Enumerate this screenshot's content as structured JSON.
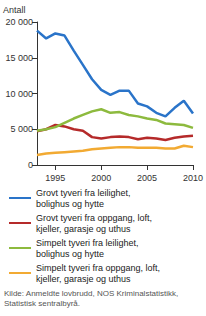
{
  "chart_data": {
    "type": "line",
    "y_label": "Antall",
    "x": [
      1993,
      1994,
      1995,
      1996,
      1997,
      1998,
      1999,
      2000,
      2001,
      2002,
      2003,
      2004,
      2005,
      2006,
      2007,
      2008,
      2009,
      2010
    ],
    "xlim": [
      1993,
      2010
    ],
    "xticks": [
      1995,
      2000,
      2005,
      2010
    ],
    "ylim": [
      0,
      20000
    ],
    "yticks": [
      0,
      {
        "value": 5000,
        "label": "5 000"
      },
      {
        "value": 10000,
        "label": "10 000"
      },
      {
        "value": 15000,
        "label": "15 000"
      },
      {
        "value": 20000,
        "label": "20 000"
      }
    ],
    "grid": false,
    "legend": "bottom",
    "series": [
      {
        "name": "Grovt tyveri fra leilighet, bolighus og hytte",
        "color": "#2a74c9",
        "line_style": "solid",
        "values": [
          18800,
          17700,
          18400,
          18100,
          16000,
          14000,
          12000,
          10500,
          9800,
          10400,
          10400,
          8600,
          8200,
          7300,
          6800,
          8000,
          9000,
          7200
        ]
      },
      {
        "name": "Grovt tyveri fra oppgang, loft, kjeller, garasje og uthus",
        "color": "#b52a2a",
        "line_style": "solid",
        "values": [
          4700,
          5000,
          5600,
          5400,
          5000,
          4800,
          3900,
          3700,
          3900,
          4000,
          3900,
          3600,
          3800,
          3700,
          3500,
          3800,
          4000,
          4100
        ]
      },
      {
        "name": "Simpelt tyveri fra leilighet, bolighus og hytte",
        "color": "#8dba3e",
        "line_style": "solid",
        "values": [
          4800,
          5000,
          5300,
          5900,
          6500,
          7000,
          7500,
          7800,
          7300,
          7400,
          7000,
          6800,
          6500,
          6300,
          5800,
          5700,
          5600,
          5200
        ]
      },
      {
        "name": "Simpelt tyveri fra oppgang, loft, kjeller, garasje og uthus",
        "color": "#f2aa32",
        "line_style": "solid",
        "values": [
          1400,
          1600,
          1700,
          1800,
          1900,
          2000,
          2200,
          2300,
          2400,
          2500,
          2500,
          2400,
          2400,
          2400,
          2300,
          2300,
          2700,
          2500
        ]
      }
    ],
    "annotations": [
      "Kilde: Anmeldte lovbrudd, NOS Kriminalstatistikk, Statistisk sentralbyrå."
    ]
  }
}
